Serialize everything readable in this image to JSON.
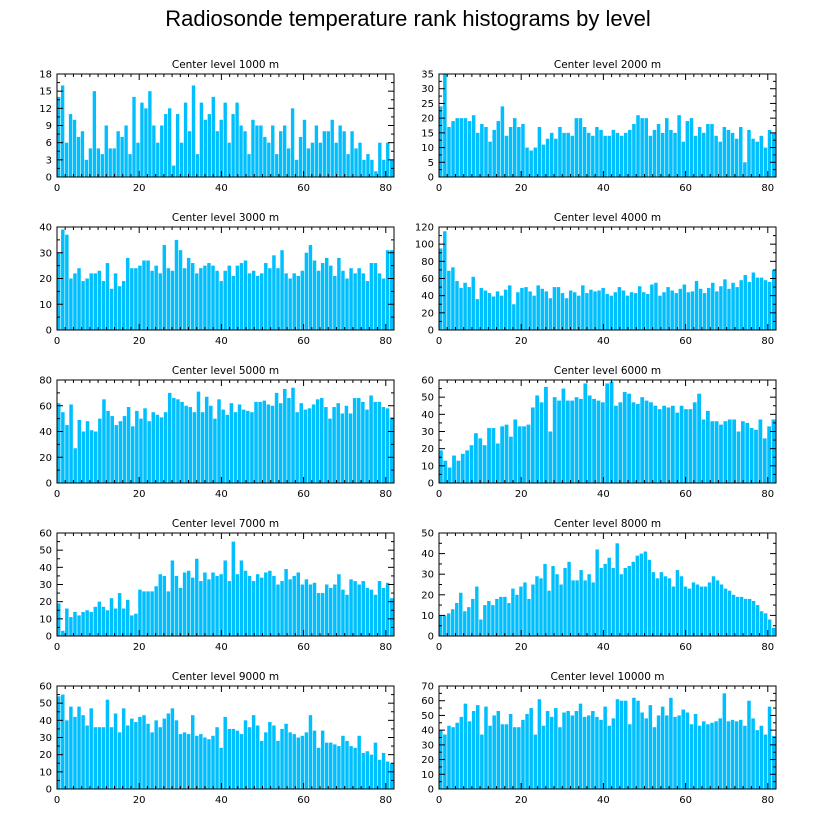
{
  "title": "Radiosonde temperature rank histograms by level",
  "colors": {
    "bar": "#00bfff",
    "bar_edge": "#ffffff",
    "axis": "#000000"
  },
  "chart_data": [
    {
      "type": "bar",
      "title": "Center level 1000 m",
      "xlabel": "",
      "ylabel": "",
      "xlim": [
        0,
        82
      ],
      "ylim": [
        0,
        18
      ],
      "xticks": [
        0,
        20,
        40,
        60,
        80
      ],
      "yticks": [
        0,
        3,
        6,
        9,
        12,
        15,
        18
      ],
      "values": [
        14,
        16,
        6,
        11,
        10,
        7,
        8,
        3,
        5,
        15,
        5,
        4,
        9,
        5,
        5,
        8,
        7,
        9,
        4,
        14,
        6,
        13,
        12,
        15,
        9,
        6,
        9,
        11,
        12,
        2,
        11,
        6,
        13,
        8,
        16,
        4,
        13,
        10,
        11,
        14,
        8,
        10,
        13,
        6,
        11,
        13,
        9,
        8,
        4,
        10,
        9,
        9,
        7,
        6,
        9,
        4,
        8,
        9,
        5,
        12,
        3,
        7,
        10,
        5,
        6,
        9,
        6,
        8,
        8,
        10,
        6,
        9,
        8,
        4,
        8,
        5,
        6,
        3,
        4,
        3,
        1,
        6,
        3,
        6,
        3
      ]
    },
    {
      "type": "bar",
      "title": "Center level 2000 m",
      "xlabel": "",
      "ylabel": "",
      "xlim": [
        0,
        82
      ],
      "ylim": [
        0,
        35
      ],
      "xticks": [
        0,
        20,
        40,
        60,
        80
      ],
      "yticks": [
        0,
        5,
        10,
        15,
        20,
        25,
        30,
        35
      ],
      "values": [
        24,
        35,
        17,
        19,
        20,
        20,
        20,
        19,
        21,
        15,
        18,
        17,
        12,
        16,
        19,
        24,
        14,
        17,
        20,
        17,
        18,
        10,
        9,
        10,
        17,
        11,
        13,
        15,
        13,
        17,
        15,
        15,
        14,
        20,
        20,
        17,
        15,
        14,
        17,
        16,
        14,
        14,
        16,
        15,
        14,
        15,
        16,
        18,
        21,
        20,
        20,
        14,
        16,
        18,
        15,
        20,
        16,
        15,
        21,
        12,
        19,
        20,
        14,
        17,
        15,
        18,
        18,
        14,
        12,
        17,
        16,
        15,
        13,
        17,
        5,
        16,
        13,
        12,
        14,
        10,
        16,
        15
      ]
    },
    {
      "type": "bar",
      "title": "Center level 3000 m",
      "xlabel": "",
      "ylabel": "",
      "xlim": [
        0,
        82
      ],
      "ylim": [
        0,
        40
      ],
      "xticks": [
        0,
        20,
        40,
        60,
        80
      ],
      "yticks": [
        0,
        10,
        20,
        30,
        40
      ],
      "values": [
        30,
        39,
        37,
        20,
        22,
        24,
        19,
        20,
        22,
        22,
        23,
        19,
        26,
        16,
        22,
        17,
        19,
        28,
        24,
        24,
        25,
        27,
        27,
        23,
        25,
        22,
        33,
        24,
        23,
        35,
        31,
        24,
        28,
        26,
        22,
        24,
        25,
        26,
        25,
        23,
        19,
        23,
        25,
        21,
        25,
        26,
        27,
        22,
        23,
        21,
        22,
        26,
        24,
        29,
        24,
        31,
        22,
        20,
        22,
        21,
        23,
        30,
        33,
        27,
        23,
        26,
        28,
        25,
        21,
        28,
        23,
        20,
        24,
        22,
        24,
        22,
        19,
        26,
        26,
        22,
        20,
        31,
        31
      ]
    },
    {
      "type": "bar",
      "title": "Center level 4000 m",
      "xlabel": "",
      "ylabel": "",
      "xlim": [
        0,
        82
      ],
      "ylim": [
        0,
        120
      ],
      "xticks": [
        0,
        20,
        40,
        60,
        80
      ],
      "yticks": [
        0,
        20,
        40,
        60,
        80,
        100,
        120
      ],
      "values": [
        95,
        115,
        69,
        73,
        57,
        49,
        55,
        50,
        62,
        36,
        49,
        46,
        43,
        39,
        45,
        40,
        47,
        52,
        30,
        44,
        49,
        50,
        45,
        40,
        52,
        48,
        45,
        37,
        50,
        50,
        43,
        37,
        46,
        44,
        40,
        52,
        43,
        47,
        45,
        46,
        49,
        42,
        40,
        44,
        50,
        46,
        40,
        44,
        43,
        51,
        44,
        42,
        53,
        55,
        40,
        44,
        50,
        46,
        43,
        48,
        53,
        44,
        45,
        57,
        48,
        43,
        49,
        55,
        45,
        51,
        59,
        48,
        55,
        50,
        58,
        64,
        56,
        67,
        61,
        61,
        58,
        56,
        70
      ]
    },
    {
      "type": "bar",
      "title": "Center level 5000 m",
      "xlabel": "",
      "ylabel": "",
      "xlim": [
        0,
        82
      ],
      "ylim": [
        0,
        80
      ],
      "xticks": [
        0,
        20,
        40,
        60,
        80
      ],
      "yticks": [
        0,
        20,
        40,
        60,
        80
      ],
      "values": [
        62,
        55,
        45,
        61,
        27,
        49,
        40,
        48,
        41,
        40,
        50,
        65,
        56,
        52,
        45,
        48,
        52,
        59,
        44,
        56,
        50,
        58,
        48,
        55,
        53,
        51,
        55,
        70,
        66,
        65,
        63,
        60,
        59,
        55,
        71,
        55,
        67,
        60,
        50,
        65,
        57,
        53,
        62,
        55,
        61,
        57,
        56,
        55,
        63,
        63,
        64,
        61,
        60,
        70,
        62,
        73,
        66,
        74,
        55,
        62,
        57,
        58,
        61,
        65,
        66,
        59,
        50,
        59,
        62,
        54,
        60,
        54,
        66,
        66,
        63,
        57,
        68,
        63,
        63,
        59,
        58,
        51
      ]
    },
    {
      "type": "bar",
      "title": "Center level 6000 m",
      "xlabel": "",
      "ylabel": "",
      "xlim": [
        0,
        82
      ],
      "ylim": [
        0,
        60
      ],
      "xticks": [
        0,
        20,
        40,
        60,
        80
      ],
      "yticks": [
        0,
        10,
        20,
        30,
        40,
        50,
        60
      ],
      "values": [
        19,
        13,
        9,
        16,
        13,
        17,
        19,
        22,
        29,
        26,
        22,
        32,
        32,
        23,
        33,
        34,
        27,
        37,
        33,
        33,
        34,
        44,
        51,
        47,
        56,
        30,
        50,
        48,
        55,
        48,
        48,
        50,
        49,
        58,
        51,
        49,
        48,
        47,
        58,
        59,
        45,
        47,
        53,
        52,
        47,
        46,
        50,
        48,
        47,
        45,
        43,
        45,
        44,
        45,
        41,
        45,
        43,
        43,
        47,
        52,
        37,
        42,
        36,
        36,
        34,
        36,
        37,
        37,
        30,
        36,
        35,
        32,
        31,
        37,
        26,
        33,
        37
      ]
    },
    {
      "type": "bar",
      "title": "Center level 7000 m",
      "xlabel": "",
      "ylabel": "",
      "xlim": [
        0,
        82
      ],
      "ylim": [
        0,
        60
      ],
      "xticks": [
        0,
        20,
        40,
        60,
        80
      ],
      "yticks": [
        0,
        10,
        20,
        30,
        40,
        50,
        60
      ],
      "values": [
        19,
        3,
        16,
        11,
        14,
        12,
        14,
        15,
        14,
        17,
        20,
        17,
        15,
        22,
        16,
        25,
        16,
        21,
        12,
        13,
        27,
        26,
        26,
        26,
        29,
        36,
        35,
        26,
        44,
        35,
        28,
        37,
        38,
        34,
        45,
        32,
        37,
        33,
        37,
        35,
        36,
        44,
        32,
        55,
        36,
        44,
        38,
        35,
        32,
        36,
        34,
        37,
        38,
        35,
        30,
        32,
        39,
        33,
        35,
        37,
        30,
        33,
        30,
        31,
        25,
        25,
        30,
        28,
        30,
        36,
        27,
        24,
        33,
        32,
        30,
        32,
        28,
        27,
        24,
        32,
        28,
        31,
        22
      ]
    },
    {
      "type": "bar",
      "title": "Center level 8000 m",
      "xlabel": "",
      "ylabel": "",
      "xlim": [
        0,
        82
      ],
      "ylim": [
        0,
        50
      ],
      "xticks": [
        0,
        20,
        40,
        60,
        80
      ],
      "yticks": [
        0,
        10,
        20,
        30,
        40,
        50
      ],
      "values": [
        10,
        10,
        11,
        13,
        16,
        21,
        12,
        14,
        18,
        24,
        8,
        15,
        17,
        15,
        18,
        19,
        19,
        16,
        23,
        20,
        24,
        26,
        18,
        25,
        29,
        28,
        35,
        22,
        34,
        30,
        25,
        33,
        36,
        27,
        27,
        32,
        27,
        30,
        26,
        42,
        33,
        35,
        38,
        33,
        45,
        30,
        33,
        34,
        36,
        39,
        40,
        41,
        37,
        31,
        28,
        31,
        29,
        28,
        24,
        32,
        29,
        24,
        23,
        26,
        25,
        24,
        24,
        26,
        29,
        27,
        25,
        23,
        22,
        20,
        19,
        19,
        18,
        18,
        17,
        15,
        12,
        11,
        8,
        4
      ]
    },
    {
      "type": "bar",
      "title": "Center level 9000 m",
      "xlabel": "",
      "ylabel": "",
      "xlim": [
        0,
        82
      ],
      "ylim": [
        0,
        60
      ],
      "xticks": [
        0,
        20,
        40,
        60,
        80
      ],
      "yticks": [
        0,
        10,
        20,
        30,
        40,
        50,
        60
      ],
      "values": [
        54,
        55,
        40,
        48,
        42,
        48,
        43,
        37,
        47,
        36,
        36,
        36,
        52,
        36,
        44,
        33,
        47,
        37,
        41,
        39,
        42,
        43,
        38,
        33,
        40,
        36,
        41,
        44,
        47,
        40,
        32,
        33,
        32,
        43,
        31,
        32,
        30,
        29,
        31,
        36,
        24,
        42,
        35,
        35,
        34,
        32,
        40,
        36,
        43,
        37,
        28,
        33,
        39,
        37,
        28,
        35,
        38,
        33,
        32,
        30,
        31,
        33,
        43,
        34,
        24,
        34,
        27,
        27,
        26,
        25,
        31,
        28,
        25,
        24,
        31,
        21,
        22,
        20,
        27,
        17,
        21,
        16,
        15
      ]
    },
    {
      "type": "bar",
      "title": "Center level 10000 m",
      "xlabel": "",
      "ylabel": "",
      "xlim": [
        0,
        82
      ],
      "ylim": [
        0,
        70
      ],
      "xticks": [
        0,
        20,
        40,
        60,
        80
      ],
      "yticks": [
        0,
        10,
        20,
        30,
        40,
        50,
        60,
        70
      ],
      "values": [
        40,
        37,
        43,
        42,
        45,
        49,
        58,
        46,
        53,
        57,
        37,
        56,
        43,
        50,
        53,
        44,
        44,
        51,
        42,
        42,
        47,
        51,
        55,
        37,
        61,
        43,
        53,
        49,
        55,
        42,
        52,
        53,
        50,
        53,
        58,
        49,
        50,
        53,
        49,
        47,
        56,
        43,
        48,
        61,
        60,
        60,
        44,
        62,
        60,
        52,
        48,
        57,
        42,
        50,
        56,
        50,
        62,
        49,
        50,
        54,
        52,
        44,
        51,
        43,
        46,
        44,
        45,
        46,
        48,
        65,
        46,
        47,
        46,
        47,
        43,
        60,
        48,
        40,
        43,
        37,
        56,
        36
      ]
    }
  ]
}
